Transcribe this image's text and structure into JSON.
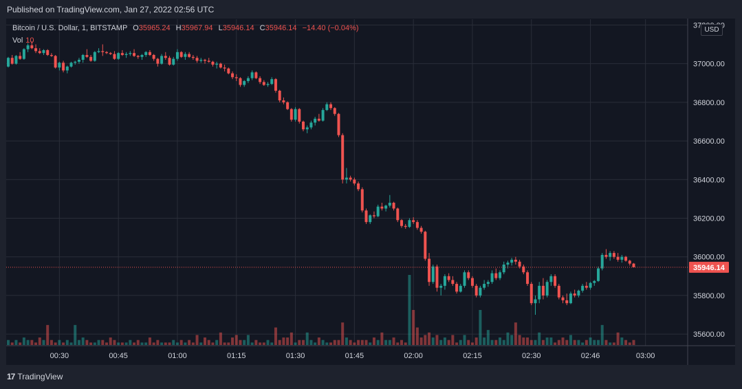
{
  "header": {
    "published": "Published on TradingView.com, Jan 27, 2022 02:56 UTC"
  },
  "legend": {
    "symbol": "Bitcoin / U.S. Dollar, 1, BITSTAMP",
    "open_label": "O",
    "open": "35965.24",
    "high_label": "H",
    "high": "35967.94",
    "low_label": "L",
    "low": "35946.14",
    "close_label": "C",
    "close": "35946.14",
    "change": "−14.40 (−0.04%)",
    "vol_label": "Vol",
    "vol_value": "10"
  },
  "currency": "USD",
  "footer": {
    "brand": "TradingView",
    "logo_text": "17"
  },
  "colors": {
    "up": "#26a69a",
    "down": "#ef5350",
    "background": "#131722",
    "grid": "#2a2e39"
  },
  "chart_data": {
    "type": "candlestick",
    "interval": "1 minute",
    "yticks": [
      "35600.00",
      "35800.00",
      "36000.00",
      "36200.00",
      "36400.00",
      "36600.00",
      "36800.00",
      "37000.00",
      "37200.00"
    ],
    "ylim": [
      35540,
      37230
    ],
    "xticks": [
      {
        "label": "00:30",
        "idx": 13
      },
      {
        "label": "00:45",
        "idx": 28
      },
      {
        "label": "01:00",
        "idx": 43
      },
      {
        "label": "01:15",
        "idx": 58
      },
      {
        "label": "01:30",
        "idx": 73
      },
      {
        "label": "01:45",
        "idx": 88
      },
      {
        "label": "02:00",
        "idx": 103
      },
      {
        "label": "02:15",
        "idx": 118
      },
      {
        "label": "02:30",
        "idx": 133
      },
      {
        "label": "02:46",
        "idx": 148
      },
      {
        "label": "03:00",
        "idx": 162
      }
    ],
    "last_price": "35946.14",
    "grid": true,
    "candles": [
      [
        36985,
        37035,
        36980,
        37030
      ],
      [
        37030,
        37045,
        36995,
        37000
      ],
      [
        37000,
        37045,
        36995,
        37040
      ],
      [
        37040,
        37060,
        37020,
        37025
      ],
      [
        37025,
        37080,
        37020,
        37075
      ],
      [
        37075,
        37105,
        37060,
        37095
      ],
      [
        37095,
        37115,
        37075,
        37080
      ],
      [
        37080,
        37100,
        37055,
        37065
      ],
      [
        37065,
        37080,
        37050,
        37055
      ],
      [
        37055,
        37075,
        37045,
        37070
      ],
      [
        37070,
        37075,
        37040,
        37045
      ],
      [
        37045,
        37055,
        37035,
        37040
      ],
      [
        37040,
        37045,
        36975,
        36980
      ],
      [
        36980,
        37010,
        36965,
        37005
      ],
      [
        37005,
        37015,
        36955,
        36965
      ],
      [
        36965,
        36990,
        36950,
        36985
      ],
      [
        36985,
        37010,
        36980,
        37005
      ],
      [
        37005,
        37015,
        36995,
        37010
      ],
      [
        37010,
        37030,
        37000,
        37020
      ],
      [
        37020,
        37050,
        37005,
        37045
      ],
      [
        37045,
        37075,
        37030,
        37035
      ],
      [
        37035,
        37045,
        37010,
        37015
      ],
      [
        37015,
        37065,
        37010,
        37060
      ],
      [
        37060,
        37080,
        37055,
        37065
      ],
      [
        37065,
        37100,
        37040,
        37060
      ],
      [
        37060,
        37065,
        37050,
        37055
      ],
      [
        37055,
        37060,
        37045,
        37050
      ],
      [
        37050,
        37065,
        37020,
        37025
      ],
      [
        37025,
        37060,
        37020,
        37055
      ],
      [
        37055,
        37070,
        37040,
        37045
      ],
      [
        37045,
        37060,
        37030,
        37050
      ],
      [
        37050,
        37065,
        37040,
        37055
      ],
      [
        37055,
        37075,
        37035,
        37040
      ],
      [
        37040,
        37045,
        37025,
        37035
      ],
      [
        37035,
        37050,
        37020,
        37045
      ],
      [
        37045,
        37065,
        37035,
        37060
      ],
      [
        37060,
        37070,
        37040,
        37045
      ],
      [
        37045,
        37050,
        37015,
        37025
      ],
      [
        37025,
        37030,
        36985,
        37000
      ],
      [
        37000,
        37050,
        36995,
        37040
      ],
      [
        37040,
        37060,
        37020,
        37030
      ],
      [
        37030,
        37040,
        36990,
        36995
      ],
      [
        36995,
        37035,
        36990,
        37025
      ],
      [
        37025,
        37075,
        37015,
        37060
      ],
      [
        37060,
        37065,
        37030,
        37035
      ],
      [
        37035,
        37060,
        37020,
        37050
      ],
      [
        37050,
        37060,
        37030,
        37035
      ],
      [
        37035,
        37045,
        37020,
        37030
      ],
      [
        37030,
        37040,
        37005,
        37015
      ],
      [
        37015,
        37030,
        37005,
        37020
      ],
      [
        37020,
        37025,
        37000,
        37015
      ],
      [
        37015,
        37030,
        37005,
        37010
      ],
      [
        37010,
        37015,
        36985,
        36995
      ],
      [
        36995,
        37010,
        36975,
        37000
      ],
      [
        37000,
        37005,
        36975,
        36980
      ],
      [
        36980,
        36995,
        36960,
        36975
      ],
      [
        36975,
        36980,
        36945,
        36950
      ],
      [
        36950,
        36960,
        36920,
        36930
      ],
      [
        36930,
        36945,
        36910,
        36925
      ],
      [
        36925,
        36930,
        36880,
        36890
      ],
      [
        36890,
        36915,
        36880,
        36910
      ],
      [
        36910,
        36935,
        36900,
        36925
      ],
      [
        36925,
        36965,
        36915,
        36955
      ],
      [
        36955,
        36960,
        36920,
        36925
      ],
      [
        36925,
        36935,
        36895,
        36905
      ],
      [
        36905,
        36915,
        36885,
        36890
      ],
      [
        36890,
        36905,
        36880,
        36895
      ],
      [
        36895,
        36930,
        36890,
        36920
      ],
      [
        36920,
        36925,
        36850,
        36860
      ],
      [
        36860,
        36865,
        36800,
        36810
      ],
      [
        36810,
        36825,
        36790,
        36800
      ],
      [
        36800,
        36805,
        36760,
        36765
      ],
      [
        36765,
        36770,
        36700,
        36710
      ],
      [
        36710,
        36775,
        36700,
        36765
      ],
      [
        36765,
        36770,
        36690,
        36700
      ],
      [
        36700,
        36705,
        36650,
        36660
      ],
      [
        36660,
        36680,
        36640,
        36670
      ],
      [
        36670,
        36705,
        36660,
        36695
      ],
      [
        36695,
        36725,
        36680,
        36715
      ],
      [
        36715,
        36740,
        36700,
        36705
      ],
      [
        36705,
        36770,
        36700,
        36760
      ],
      [
        36760,
        36800,
        36755,
        36790
      ],
      [
        36790,
        36800,
        36760,
        36770
      ],
      [
        36770,
        36775,
        36730,
        36740
      ],
      [
        36740,
        36745,
        36620,
        36630
      ],
      [
        36630,
        36640,
        36380,
        36400
      ],
      [
        36400,
        36460,
        36380,
        36410
      ],
      [
        36410,
        36420,
        36390,
        36400
      ],
      [
        36400,
        36410,
        36370,
        36380
      ],
      [
        36380,
        36390,
        36340,
        36350
      ],
      [
        36350,
        36360,
        36230,
        36240
      ],
      [
        36240,
        36250,
        36170,
        36180
      ],
      [
        36180,
        36220,
        36170,
        36215
      ],
      [
        36215,
        36235,
        36200,
        36210
      ],
      [
        36210,
        36270,
        36205,
        36260
      ],
      [
        36260,
        36280,
        36240,
        36250
      ],
      [
        36250,
        36270,
        36235,
        36265
      ],
      [
        36265,
        36320,
        36255,
        36280
      ],
      [
        36280,
        36285,
        36240,
        36250
      ],
      [
        36250,
        36255,
        36180,
        36190
      ],
      [
        36190,
        36195,
        36150,
        36160
      ],
      [
        36160,
        36170,
        36145,
        36155
      ],
      [
        36155,
        36200,
        36150,
        36190
      ],
      [
        36190,
        36205,
        36170,
        36180
      ],
      [
        36180,
        36190,
        36140,
        36150
      ],
      [
        36150,
        36160,
        36120,
        36130
      ],
      [
        36130,
        36135,
        35980,
        35990
      ],
      [
        35990,
        36020,
        35850,
        35870
      ],
      [
        35870,
        35960,
        35860,
        35950
      ],
      [
        35950,
        35960,
        35820,
        35840
      ],
      [
        35840,
        35860,
        35800,
        35850
      ],
      [
        35850,
        35910,
        35830,
        35900
      ],
      [
        35900,
        35915,
        35870,
        35880
      ],
      [
        35880,
        35900,
        35850,
        35860
      ],
      [
        35860,
        35870,
        35810,
        35820
      ],
      [
        35820,
        35860,
        35815,
        35850
      ],
      [
        35850,
        35930,
        35840,
        35920
      ],
      [
        35920,
        35930,
        35880,
        35890
      ],
      [
        35890,
        35900,
        35840,
        35850
      ],
      [
        35850,
        35860,
        35790,
        35800
      ],
      [
        35800,
        35850,
        35790,
        35840
      ],
      [
        35840,
        35880,
        35830,
        35860
      ],
      [
        35860,
        35880,
        35845,
        35870
      ],
      [
        35870,
        35930,
        35860,
        35915
      ],
      [
        35915,
        35940,
        35880,
        35890
      ],
      [
        35890,
        35930,
        35880,
        35920
      ],
      [
        35920,
        35975,
        35910,
        35960
      ],
      [
        35960,
        35980,
        35940,
        35970
      ],
      [
        35970,
        35995,
        35955,
        35985
      ],
      [
        35985,
        36000,
        35960,
        35975
      ],
      [
        35975,
        35985,
        35940,
        35950
      ],
      [
        35950,
        35960,
        35910,
        35920
      ],
      [
        35920,
        35930,
        35850,
        35860
      ],
      [
        35860,
        35870,
        35750,
        35760
      ],
      [
        35760,
        35800,
        35700,
        35780
      ],
      [
        35780,
        35870,
        35760,
        35850
      ],
      [
        35850,
        35890,
        35780,
        35800
      ],
      [
        35800,
        35880,
        35790,
        35870
      ],
      [
        35870,
        35910,
        35850,
        35900
      ],
      [
        35900,
        35910,
        35840,
        35850
      ],
      [
        35850,
        35860,
        35780,
        35790
      ],
      [
        35790,
        35800,
        35760,
        35775
      ],
      [
        35775,
        35810,
        35750,
        35760
      ],
      [
        35760,
        35820,
        35755,
        35810
      ],
      [
        35810,
        35830,
        35790,
        35800
      ],
      [
        35800,
        35830,
        35790,
        35825
      ],
      [
        35825,
        35860,
        35815,
        35850
      ],
      [
        35850,
        35870,
        35830,
        35840
      ],
      [
        35840,
        35870,
        35830,
        35865
      ],
      [
        35865,
        35880,
        35850,
        35875
      ],
      [
        35875,
        35950,
        35870,
        35940
      ],
      [
        35940,
        36020,
        35930,
        36010
      ],
      [
        36010,
        36040,
        35990,
        36000
      ],
      [
        36000,
        36030,
        35980,
        36020
      ],
      [
        36020,
        36030,
        35990,
        36000
      ],
      [
        36000,
        36020,
        35975,
        35985
      ],
      [
        35985,
        36010,
        35970,
        36000
      ],
      [
        36000,
        36005,
        35975,
        35980
      ],
      [
        35980,
        35985,
        35955,
        35965
      ],
      [
        35965,
        35968,
        35946,
        35946
      ]
    ],
    "volumes": [
      2,
      1,
      2,
      1,
      3,
      2,
      2,
      1,
      3,
      2,
      8,
      2,
      1,
      2,
      1,
      2,
      1,
      8,
      2,
      3,
      2,
      1,
      1,
      2,
      2,
      1,
      3,
      2,
      1,
      1,
      1,
      2,
      1,
      2,
      1,
      1,
      3,
      1,
      2,
      1,
      1,
      1,
      2,
      1,
      2,
      1,
      2,
      1,
      4,
      1,
      3,
      2,
      1,
      2,
      5,
      1,
      1,
      3,
      4,
      2,
      2,
      4,
      1,
      2,
      1,
      1,
      2,
      1,
      7,
      2,
      3,
      3,
      5,
      1,
      2,
      2,
      5,
      2,
      1,
      3,
      2,
      1,
      1,
      2,
      2,
      9,
      3,
      2,
      1,
      2,
      2,
      2,
      1,
      3,
      2,
      5,
      2,
      2,
      3,
      1,
      2,
      1,
      28,
      14,
      7,
      3,
      4,
      5,
      3,
      4,
      2,
      3,
      2,
      4,
      1,
      2,
      4,
      2,
      1,
      3,
      14,
      3,
      6,
      2,
      2,
      3,
      2,
      5,
      4,
      9,
      4,
      3,
      3,
      2,
      2,
      5,
      2,
      3,
      3,
      1,
      2,
      3,
      2,
      4,
      2,
      2,
      1,
      2,
      3,
      2,
      2,
      8,
      2,
      1,
      1,
      5,
      3,
      2,
      1,
      2,
      5,
      3,
      8,
      10
    ],
    "vol_max": 28
  }
}
